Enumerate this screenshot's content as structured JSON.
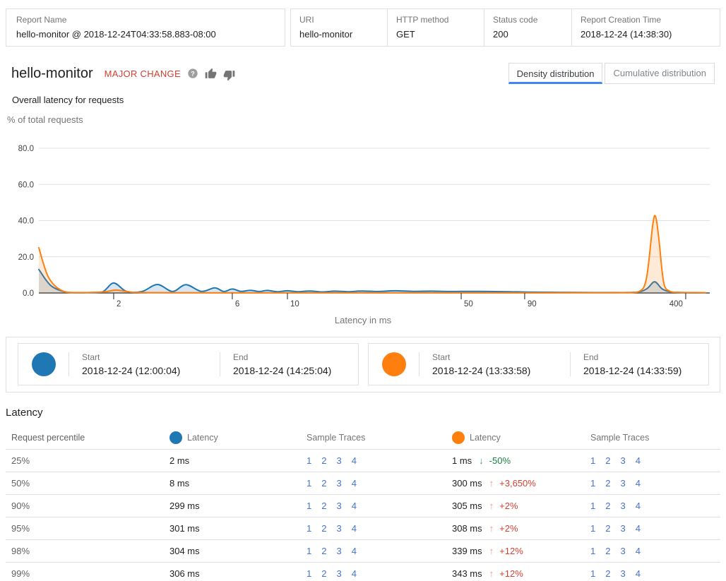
{
  "header": {
    "fields": [
      {
        "label": "Report Name",
        "value": "hello-monitor @ 2018-12-24T04:33:58.883-08:00"
      },
      {
        "label": "URI",
        "value": "hello-monitor"
      },
      {
        "label": "HTTP method",
        "value": "GET"
      },
      {
        "label": "Status code",
        "value": "200"
      },
      {
        "label": "Report Creation Time",
        "value": "2018-12-24 (14:38:30)"
      }
    ]
  },
  "title": {
    "name": "hello-monitor",
    "badge": "MAJOR CHANGE"
  },
  "tabs": [
    {
      "label": "Density distribution",
      "active": true
    },
    {
      "label": "Cumulative distribution",
      "active": false
    }
  ],
  "chart": {
    "subtitle": "Overall latency for requests"
  },
  "chart_data": {
    "type": "area",
    "x_scale": "log",
    "title": "Overall latency for requests",
    "xlabel": "Latency in ms",
    "ylabel": "% of total requests",
    "ylim": [
      0,
      80
    ],
    "yticks": [
      0,
      20,
      40,
      60,
      80
    ],
    "xticks": [
      2,
      6,
      10,
      50,
      90,
      400
    ],
    "x_range_ms": [
      1,
      500
    ],
    "series": [
      {
        "name": "baseline 2018-12-24 (12:00:04) to (14:25:04)",
        "color": "#1f77b4",
        "fill": "rgba(31,119,180,0.18)",
        "points": [
          [
            1,
            13
          ],
          [
            1.12,
            4
          ],
          [
            1.3,
            0.4
          ],
          [
            1.55,
            0.2
          ],
          [
            1.8,
            0.6
          ],
          [
            2,
            5.5
          ],
          [
            2.25,
            0.9
          ],
          [
            2.6,
            0.8
          ],
          [
            3,
            4.7
          ],
          [
            3.45,
            0.8
          ],
          [
            3.9,
            4.6
          ],
          [
            4.5,
            0.9
          ],
          [
            5.1,
            2.8
          ],
          [
            5.55,
            0.8
          ],
          [
            6,
            2.2
          ],
          [
            6.5,
            0.9
          ],
          [
            7.1,
            1.5
          ],
          [
            7.7,
            0.8
          ],
          [
            8.3,
            1.4
          ],
          [
            9.1,
            0.7
          ],
          [
            10,
            1.2
          ],
          [
            11,
            0.7
          ],
          [
            12.3,
            1.1
          ],
          [
            13.8,
            0.6
          ],
          [
            15.5,
            1.0
          ],
          [
            17.5,
            0.7
          ],
          [
            20,
            1.1
          ],
          [
            23,
            0.8
          ],
          [
            27,
            1.2
          ],
          [
            32,
            0.9
          ],
          [
            38,
            1.0
          ],
          [
            45,
            0.8
          ],
          [
            54,
            0.9
          ],
          [
            65,
            0.8
          ],
          [
            78,
            0.7
          ],
          [
            92,
            0.5
          ],
          [
            115,
            0.4
          ],
          [
            150,
            0.3
          ],
          [
            200,
            0.25
          ],
          [
            255,
            0.5
          ],
          [
            280,
            2.5
          ],
          [
            300,
            6.2
          ],
          [
            322,
            2.2
          ],
          [
            350,
            0.5
          ],
          [
            400,
            0.15
          ],
          [
            480,
            0.1
          ]
        ]
      },
      {
        "name": "comparison 2018-12-24 (13:33:58) to (14:33:59)",
        "color": "#ff7f0e",
        "fill": "rgba(255,127,14,0.16)",
        "points": [
          [
            1,
            25
          ],
          [
            1.1,
            8
          ],
          [
            1.28,
            0.5
          ],
          [
            1.6,
            0.3
          ],
          [
            1.85,
            0.7
          ],
          [
            2.05,
            1.6
          ],
          [
            2.35,
            0.5
          ],
          [
            2.8,
            0.2
          ],
          [
            3.5,
            0.15
          ],
          [
            5,
            0.12
          ],
          [
            7,
            0.12
          ],
          [
            10,
            0.12
          ],
          [
            15,
            0.12
          ],
          [
            22,
            0.12
          ],
          [
            33,
            0.12
          ],
          [
            50,
            0.12
          ],
          [
            75,
            0.12
          ],
          [
            110,
            0.12
          ],
          [
            160,
            0.15
          ],
          [
            220,
            0.2
          ],
          [
            258,
            0.6
          ],
          [
            278,
            8
          ],
          [
            295,
            38
          ],
          [
            303,
            42
          ],
          [
            312,
            30
          ],
          [
            326,
            6
          ],
          [
            345,
            1
          ],
          [
            375,
            0.4
          ],
          [
            430,
            0.25
          ],
          [
            480,
            0.2
          ]
        ]
      }
    ]
  },
  "legend": {
    "cards": [
      {
        "color": "#1f77b4",
        "start_label": "Start",
        "start_value": "2018-12-24 (12:00:04)",
        "end_label": "End",
        "end_value": "2018-12-24 (14:25:04)"
      },
      {
        "color": "#ff7f0e",
        "start_label": "Start",
        "start_value": "2018-12-24 (13:33:58)",
        "end_label": "End",
        "end_value": "2018-12-24 (14:33:59)"
      }
    ]
  },
  "table": {
    "section_title": "Latency",
    "columns": {
      "percentile": "Request percentile",
      "latency": "Latency",
      "traces": "Sample Traces"
    },
    "trace_links": [
      "1",
      "2",
      "3",
      "4"
    ],
    "rows": [
      {
        "percentile": "25%",
        "baseline": "2 ms",
        "compare": "1 ms",
        "arrow": "↓",
        "trend": "down",
        "change": "-50%"
      },
      {
        "percentile": "50%",
        "baseline": "8 ms",
        "compare": "300 ms",
        "arrow": "↑",
        "trend": "up",
        "change": "+3,650%"
      },
      {
        "percentile": "90%",
        "baseline": "299 ms",
        "compare": "305 ms",
        "arrow": "↑",
        "trend": "up",
        "change": "+2%"
      },
      {
        "percentile": "95%",
        "baseline": "301 ms",
        "compare": "308 ms",
        "arrow": "↑",
        "trend": "up",
        "change": "+2%"
      },
      {
        "percentile": "98%",
        "baseline": "304 ms",
        "compare": "339 ms",
        "arrow": "↑",
        "trend": "up",
        "change": "+12%"
      },
      {
        "percentile": "99%",
        "baseline": "306 ms",
        "compare": "343 ms",
        "arrow": "↑",
        "trend": "up",
        "change": "+12%"
      }
    ]
  }
}
